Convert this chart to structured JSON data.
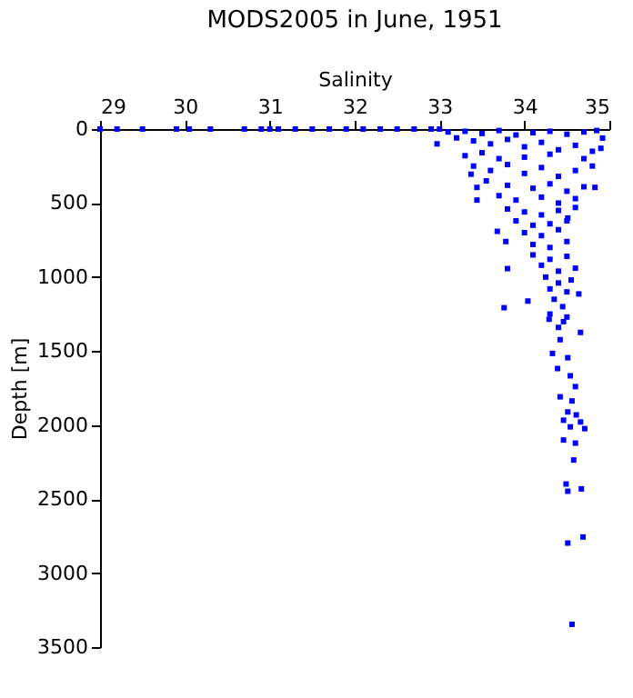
{
  "chart_data": {
    "type": "scatter",
    "title": "MODS2005 in June, 1951",
    "xlabel": "Salinity",
    "ylabel": "Depth [m]",
    "xlim": [
      29,
      35
    ],
    "xticks": [
      29,
      30,
      31,
      32,
      33,
      34,
      35
    ],
    "ylim": [
      3500,
      0
    ],
    "yticks": [
      0,
      500,
      1000,
      1500,
      2000,
      2500,
      3000,
      3500
    ],
    "grid": false,
    "marker": "square",
    "series": [
      {
        "color": "#0000ff",
        "x": [
          29,
          29.2,
          29.5,
          29.9,
          30.05,
          30.3,
          30.7,
          30.9,
          31.0,
          31.1,
          31.3,
          31.5,
          31.7,
          31.9,
          32.1,
          32.3,
          32.5,
          32.7,
          32.9,
          33.0,
          32.97,
          33.37,
          33.44,
          33.44,
          33.68,
          33.78,
          33.8,
          33.76,
          34.04,
          34.29,
          34.64,
          34.51,
          34.83,
          34.92,
          34.46,
          34.42,
          34.66,
          34.33,
          34.51,
          34.39,
          34.54,
          34.42,
          34.6,
          34.56,
          34.51,
          34.61,
          34.46,
          34.54,
          34.66,
          34.71,
          34.46,
          34.6,
          34.58,
          34.49,
          34.51,
          34.67,
          34.69,
          34.51,
          34.56,
          33.1,
          33.3,
          33.5,
          33.7,
          33.9,
          34.1,
          34.3,
          34.5,
          34.7,
          34.85,
          33.2,
          33.4,
          33.6,
          33.8,
          34.0,
          34.2,
          34.4,
          34.6,
          34.8,
          33.5,
          33.3,
          33.7,
          34.0,
          34.3,
          34.7,
          34.9,
          33.4,
          33.6,
          33.8,
          34.0,
          34.2,
          34.4,
          34.6,
          34.8,
          33.55,
          33.8,
          34.1,
          34.3,
          34.5,
          34.7,
          33.7,
          33.9,
          34.2,
          34.4,
          34.6,
          33.8,
          34.0,
          34.2,
          34.4,
          34.6,
          33.9,
          34.1,
          34.3,
          34.5,
          34.0,
          34.2,
          34.4,
          34.1,
          34.3,
          34.5,
          34.1,
          34.3,
          34.5,
          34.2,
          34.4,
          34.6,
          34.25,
          34.4,
          34.55,
          34.3,
          34.5,
          34.35,
          34.45,
          34.3,
          34.5,
          34.4
        ],
        "values": [
          0,
          0,
          0,
          0,
          0,
          0,
          0,
          0,
          0,
          0,
          0,
          0,
          0,
          0,
          0,
          0,
          0,
          0,
          0,
          0,
          100,
          305,
          394,
          480,
          691,
          760,
          943,
          1207,
          1162,
          1285,
          1114,
          601,
          394,
          61,
          1301,
          1423,
          1374,
          1516,
          1545,
          1618,
          1667,
          1809,
          1740,
          1837,
          1911,
          1931,
          1967,
          2012,
          1979,
          2024,
          2101,
          2122,
          2236,
          2398,
          2447,
          2431,
          2756,
          2797,
          3346,
          20,
          15,
          30,
          10,
          40,
          25,
          15,
          35,
          20,
          10,
          60,
          80,
          100,
          70,
          120,
          90,
          140,
          110,
          150,
          160,
          180,
          200,
          190,
          170,
          200,
          130,
          250,
          280,
          240,
          300,
          260,
          320,
          280,
          250,
          350,
          380,
          400,
          370,
          420,
          390,
          450,
          480,
          460,
          500,
          470,
          540,
          560,
          580,
          550,
          530,
          620,
          650,
          640,
          620,
          700,
          720,
          680,
          780,
          800,
          760,
          850,
          880,
          860,
          920,
          960,
          940,
          1000,
          1040,
          1020,
          1080,
          1100,
          1150,
          1200,
          1250,
          1270,
          1340
        ]
      }
    ]
  }
}
